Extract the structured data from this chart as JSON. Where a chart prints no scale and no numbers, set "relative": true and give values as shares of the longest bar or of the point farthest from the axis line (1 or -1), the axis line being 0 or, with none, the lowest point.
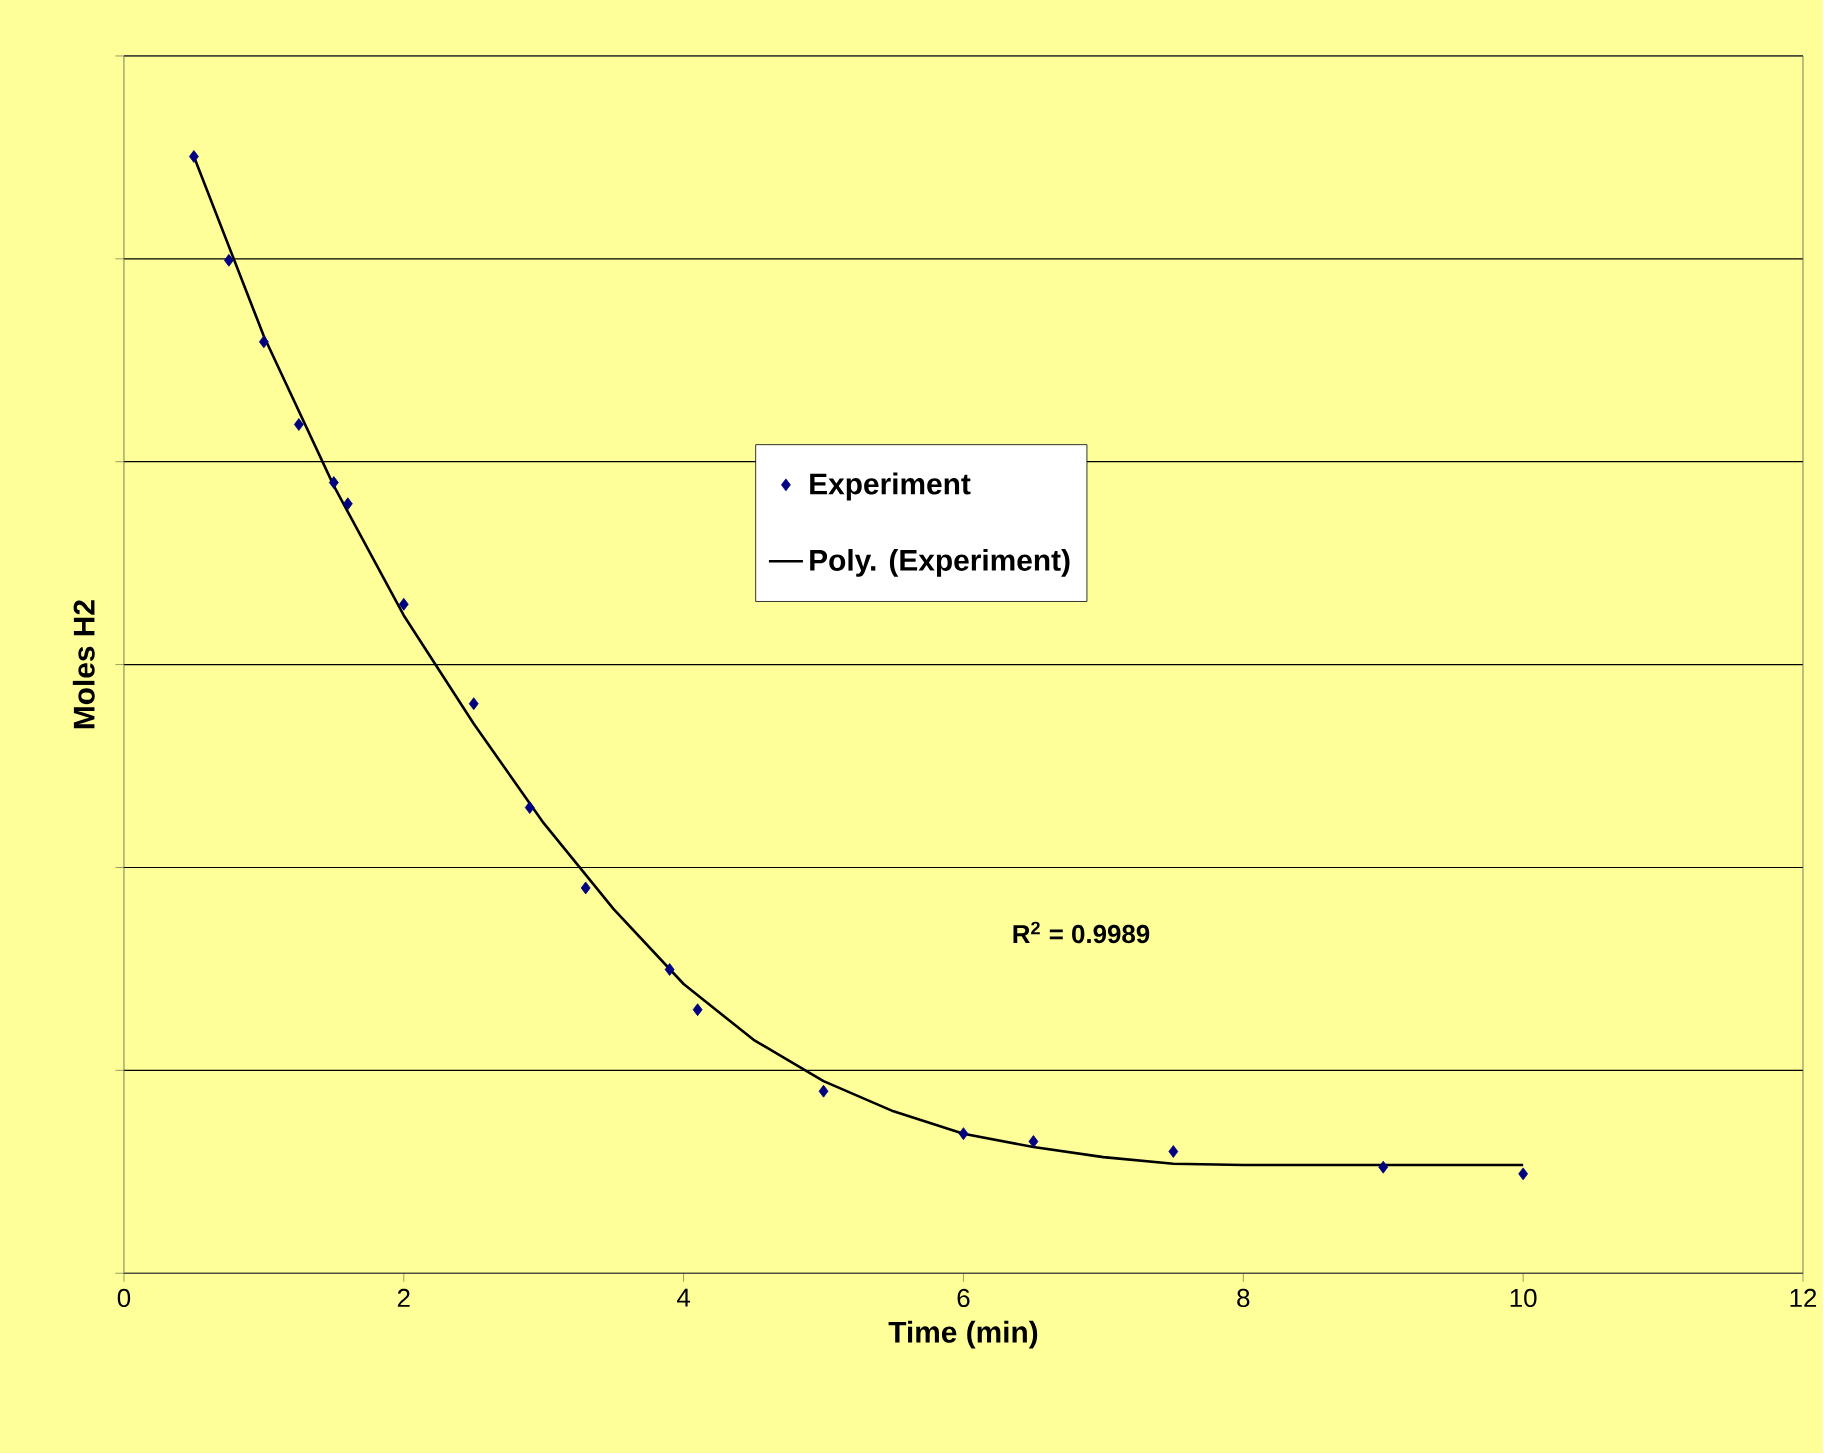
{
  "chart_data": {
    "type": "scatter",
    "relative": true,
    "xlabel": "Time (min)",
    "ylabel": "Moles H2",
    "xlim": [
      0,
      12
    ],
    "xticks": [
      0,
      2,
      4,
      6,
      8,
      10,
      12
    ],
    "tick_labels": "x",
    "grid": "y",
    "legend": "right",
    "annotations": [
      "R$^{2}$ = 0.9989"
    ],
    "series": [
      {
        "name": "Experiment",
        "marker": "diamond",
        "color": "#000080",
        "x": [
          0.5,
          0.75,
          1.0,
          1.25,
          1.5,
          1.6,
          2.0,
          2.5,
          2.9,
          3.3,
          3.9,
          4.1,
          5.0,
          6.0,
          6.5,
          7.5,
          9.0,
          10.0
        ],
        "values": [
          1,
          0.907,
          0.834,
          0.76,
          0.708,
          0.689,
          0.599,
          0.51,
          0.417,
          0.345,
          0.272,
          0.236,
          0.163,
          0.125,
          0.118,
          0.109,
          0.095,
          0.089
        ]
      },
      {
        "name": "Poly. (Experiment)",
        "type": "line",
        "marker": "none",
        "line_style": "solid",
        "color": "#000000",
        "x": [
          0.5,
          1.0,
          1.5,
          2.0,
          2.5,
          3.0,
          3.5,
          4.0,
          4.5,
          5.0,
          5.5,
          6.0,
          6.5,
          7.0,
          7.5,
          8.0,
          9.0,
          10.0
        ],
        "values": [
          1,
          0.839,
          0.705,
          0.589,
          0.492,
          0.403,
          0.326,
          0.259,
          0.209,
          0.172,
          0.145,
          0.125,
          0.113,
          0.104,
          0.098,
          0.097,
          0.097,
          0.097
        ]
      }
    ]
  }
}
